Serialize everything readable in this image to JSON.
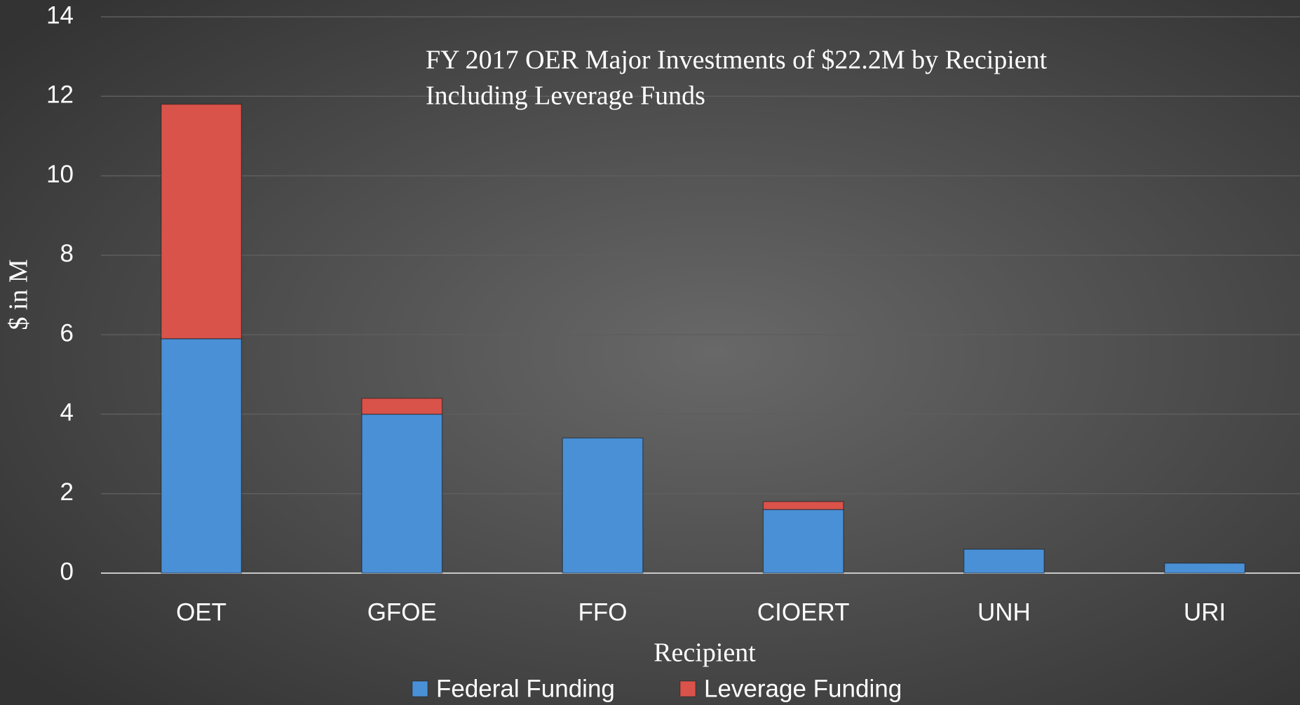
{
  "chart_data": {
    "type": "stacked_bar",
    "title": [
      "FY 2017 OER Major Investments of $22.2M by Recipient",
      "Including Leverage Funds"
    ],
    "x_label": "Recipient",
    "y_label": "$ in M",
    "categories": [
      "OET",
      "GFOE",
      "FFO",
      "CIOERT",
      "UNH",
      "URI"
    ],
    "series": [
      {
        "name": "Federal Funding",
        "color": "#4a90d6",
        "values": [
          5.9,
          4.0,
          3.4,
          1.6,
          0.6,
          0.25
        ]
      },
      {
        "name": "Leverage Funding",
        "color": "#d9534a",
        "values": [
          5.9,
          0.4,
          0,
          0.2,
          0,
          0
        ]
      }
    ],
    "ylim": [
      0,
      14
    ],
    "yticks": [
      0,
      2,
      4,
      6,
      8,
      10,
      12,
      14
    ],
    "grid": true
  }
}
